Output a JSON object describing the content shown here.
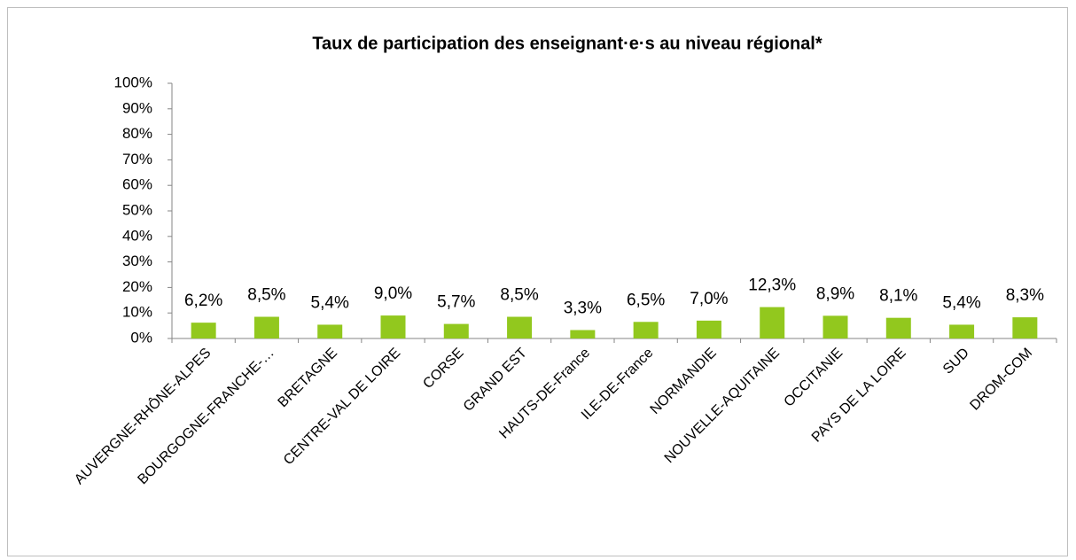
{
  "chart_data": {
    "type": "bar",
    "title": "Taux de participation des enseignant·e·s  au niveau régional*",
    "categories": [
      "AUVERGNE-RHÔNE-ALPES",
      "BOURGOGNE-FRANCHE-…",
      "BRETAGNE",
      "CENTRE-VAL DE LOIRE",
      "CORSE",
      "GRAND EST",
      "HAUTS-DE-France",
      "ILE-DE-France",
      "NORMANDIE",
      "NOUVELLE-AQUITAINE",
      "OCCITANIE",
      "PAYS DE LA LOIRE",
      "SUD",
      "DROM-COM"
    ],
    "values": [
      6.2,
      8.5,
      5.4,
      9.0,
      5.7,
      8.5,
      3.3,
      6.5,
      7.0,
      12.3,
      8.9,
      8.1,
      5.4,
      8.3
    ],
    "value_labels": [
      "6,2%",
      "8,5%",
      "5,4%",
      "9,0%",
      "5,7%",
      "8,5%",
      "3,3%",
      "6,5%",
      "7,0%",
      "12,3%",
      "8,9%",
      "8,1%",
      "5,4%",
      "8,3%"
    ],
    "color": "#92c81e",
    "ylim": [
      0,
      100
    ],
    "yticks": [
      {
        "value": 0,
        "label": "0%"
      },
      {
        "value": 10,
        "label": "10%"
      },
      {
        "value": 20,
        "label": "20%"
      },
      {
        "value": 30,
        "label": "30%"
      },
      {
        "value": 40,
        "label": "40%"
      },
      {
        "value": 50,
        "label": "50%"
      },
      {
        "value": 60,
        "label": "60%"
      },
      {
        "value": 70,
        "label": "70%"
      },
      {
        "value": 80,
        "label": "80%"
      },
      {
        "value": 90,
        "label": "90%"
      },
      {
        "value": 100,
        "label": "100%"
      }
    ],
    "grid": false
  }
}
